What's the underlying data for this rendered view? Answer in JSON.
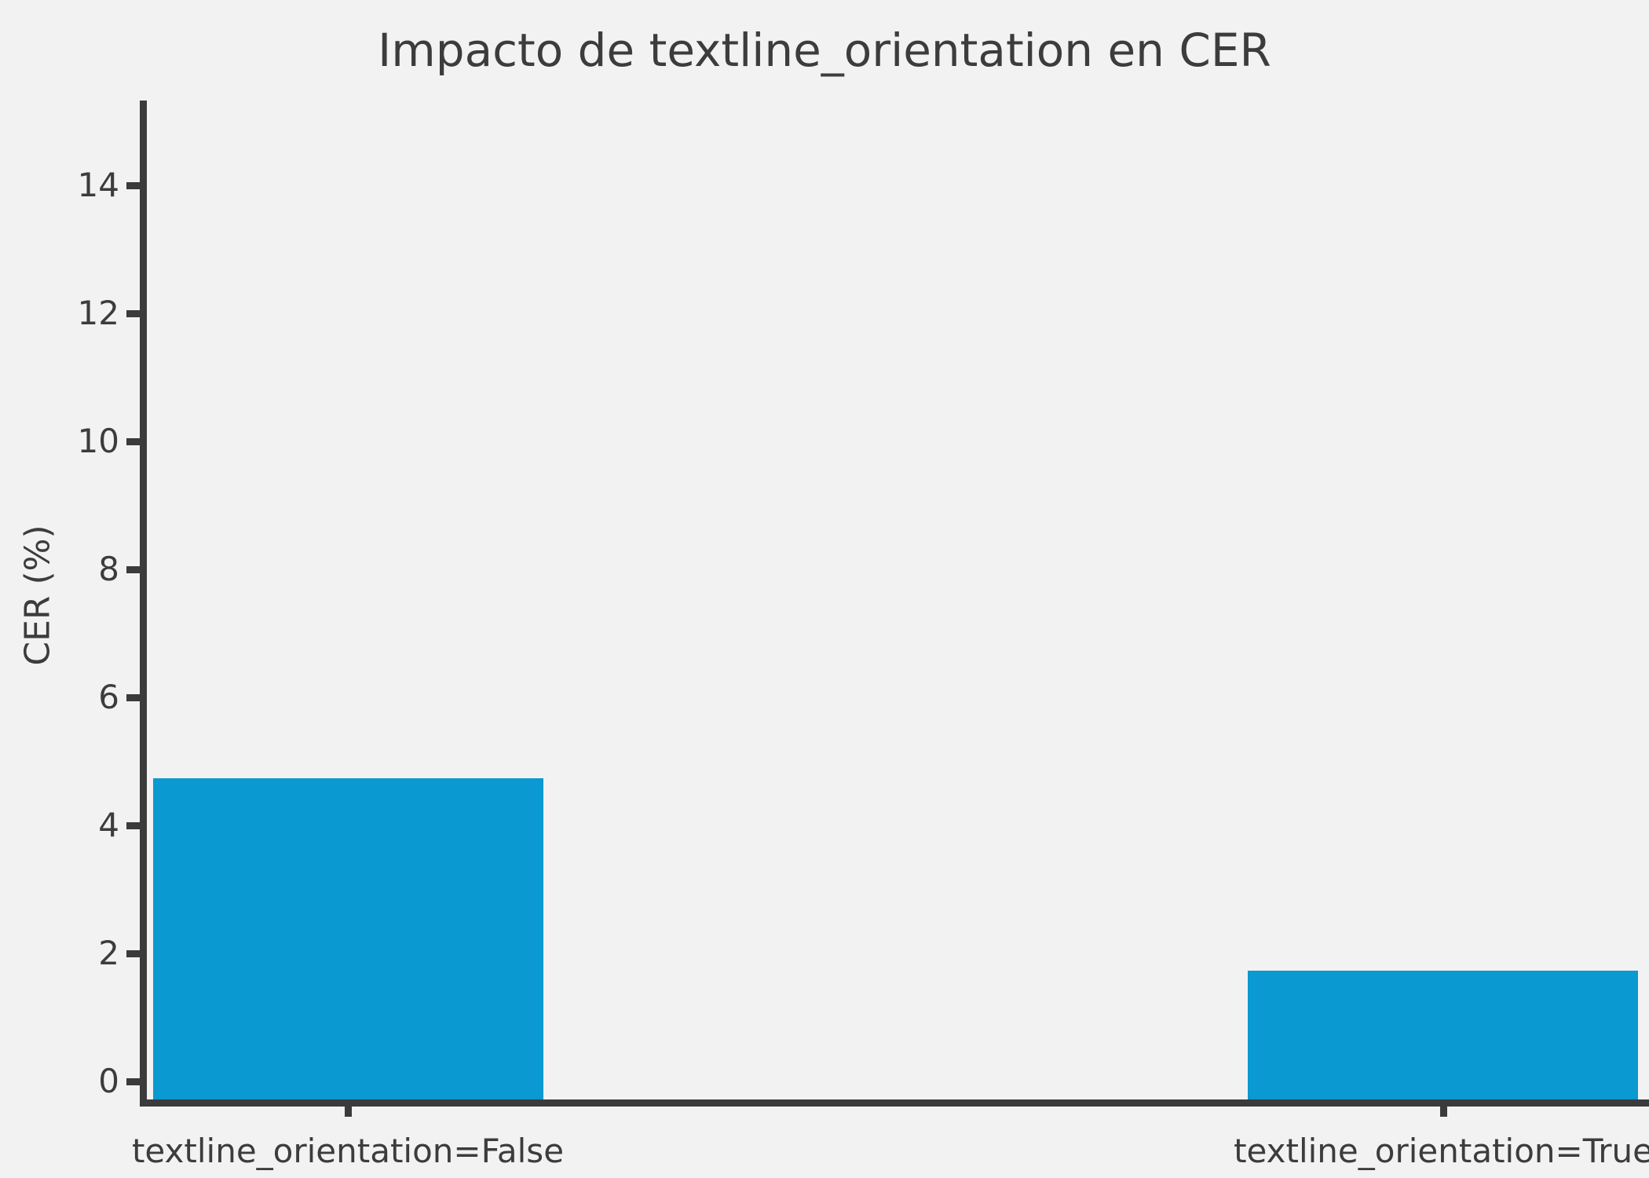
{
  "chart_data": {
    "type": "bar",
    "title": "Impacto de textline_orientation en CER",
    "ylabel": "CER (%)",
    "xlabel": "",
    "categories": [
      "textline_orientation=False",
      "textline_orientation=True"
    ],
    "values": [
      4.74,
      1.73
    ],
    "yticks": [
      0,
      2,
      4,
      6,
      8,
      10,
      12,
      14
    ],
    "ylim": [
      -0.3,
      15.3
    ],
    "grid": false,
    "legend": false
  },
  "colors": {
    "background": "#f2f2f2",
    "bar": "#0a99d0",
    "spine": "#3b3b3b",
    "text": "#3c3c3c"
  }
}
